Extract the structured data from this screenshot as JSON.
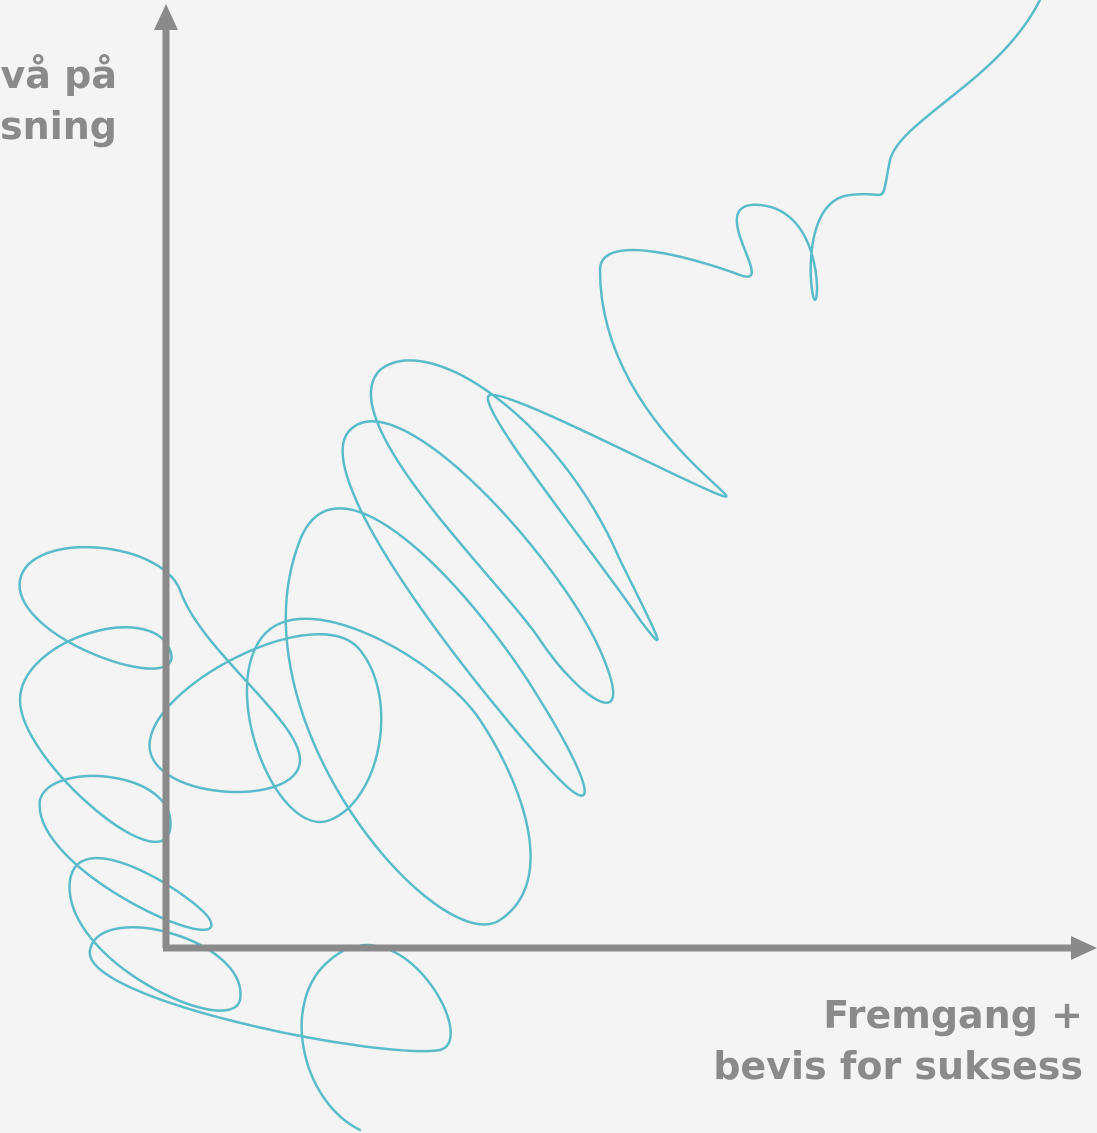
{
  "y_axis_label": {
    "lines": [
      "ivå på",
      "øsning"
    ]
  },
  "x_axis_label": {
    "lines": [
      "Fremgang +",
      "bevis for suksess"
    ]
  }
}
